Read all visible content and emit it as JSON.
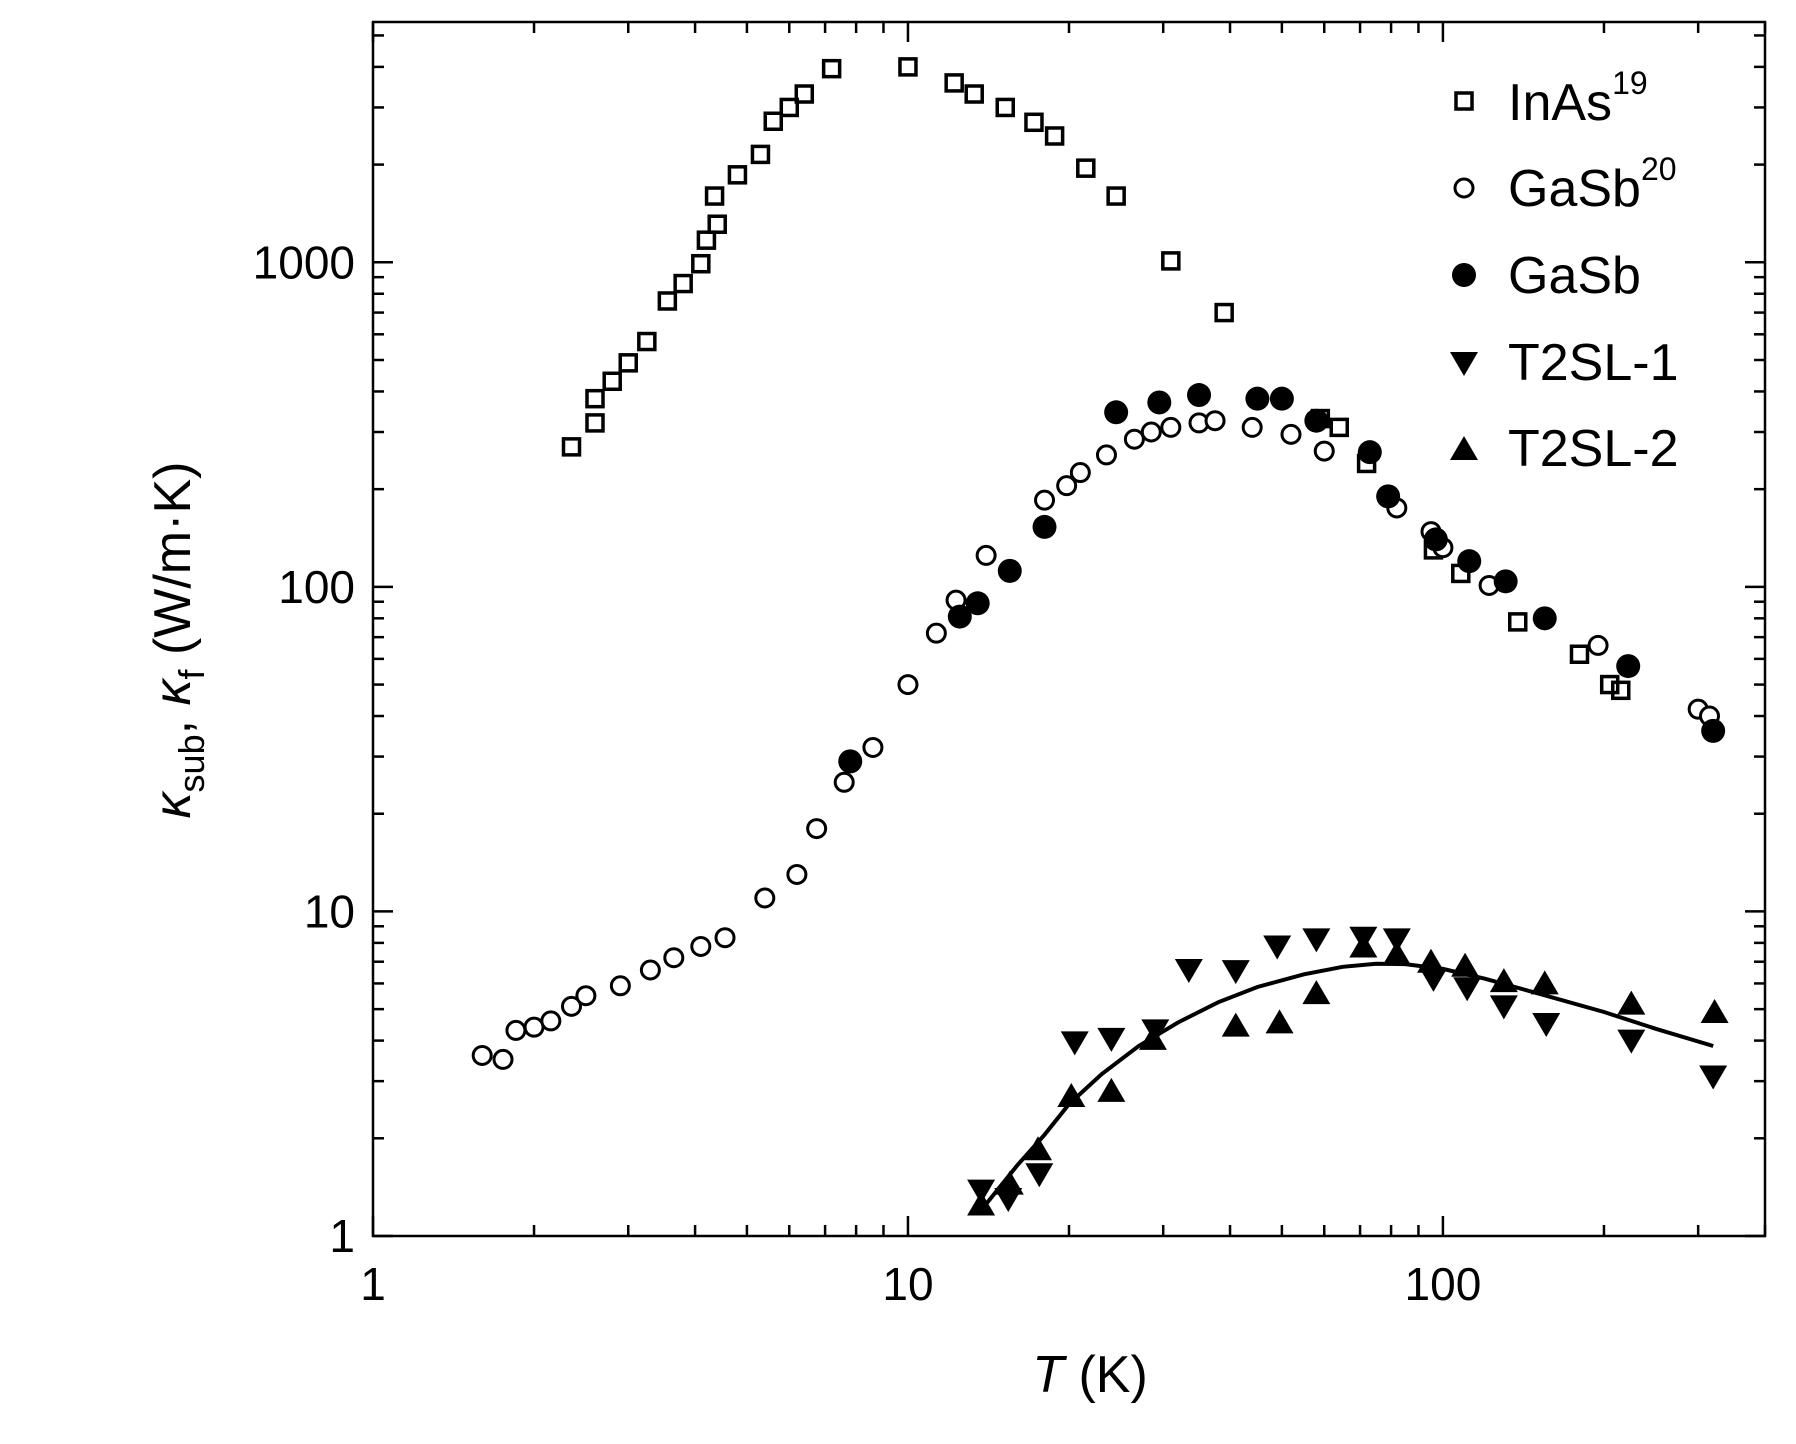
{
  "chart_data": {
    "type": "scatter",
    "xlabel": {
      "symbol": "T",
      "unit": " (K)"
    },
    "ylabel": {
      "kappa1": "κ",
      "sub1": "sub",
      "sep": ", ",
      "kappa2": "κ",
      "sub2": "f",
      "unit": " (W/m·K)"
    },
    "x_scale": "log",
    "y_scale": "log",
    "xlim": [
      1,
      400
    ],
    "ylim": [
      1,
      5500
    ],
    "x_ticks": [
      {
        "value": 1,
        "label": "1"
      },
      {
        "value": 10,
        "label": "10"
      },
      {
        "value": 100,
        "label": "100"
      }
    ],
    "y_ticks": [
      {
        "value": 1,
        "label": "1"
      },
      {
        "value": 10,
        "label": "10"
      },
      {
        "value": 100,
        "label": "100"
      },
      {
        "value": 1000,
        "label": "1000"
      }
    ],
    "legend_position": "top-right",
    "grid": false,
    "series": [
      {
        "name": "InAs",
        "name_sup": "19",
        "marker": "square-open",
        "points": [
          [
            2.35,
            270
          ],
          [
            2.6,
            320
          ],
          [
            2.6,
            380
          ],
          [
            2.8,
            430
          ],
          [
            3.0,
            490
          ],
          [
            3.25,
            570
          ],
          [
            3.55,
            760
          ],
          [
            3.8,
            860
          ],
          [
            4.1,
            990
          ],
          [
            4.2,
            1170
          ],
          [
            4.4,
            1310
          ],
          [
            4.35,
            1600
          ],
          [
            4.8,
            1860
          ],
          [
            5.3,
            2150
          ],
          [
            5.6,
            2720
          ],
          [
            6.0,
            3000
          ],
          [
            6.4,
            3300
          ],
          [
            7.2,
            3950
          ],
          [
            10.0,
            4000
          ],
          [
            12.2,
            3570
          ],
          [
            13.3,
            3300
          ],
          [
            15.2,
            3000
          ],
          [
            17.2,
            2700
          ],
          [
            18.8,
            2450
          ],
          [
            21.5,
            1950
          ],
          [
            24.5,
            1600
          ],
          [
            31.0,
            1010
          ],
          [
            39.0,
            700
          ],
          [
            59.0,
            330
          ],
          [
            64.0,
            310
          ],
          [
            72.0,
            240
          ],
          [
            96.0,
            130
          ],
          [
            108.0,
            110
          ],
          [
            138.0,
            78
          ],
          [
            180.0,
            62
          ],
          [
            205.0,
            50
          ],
          [
            215.0,
            48
          ]
        ]
      },
      {
        "name": "GaSb",
        "name_sup": "20",
        "marker": "circle-open",
        "points": [
          [
            1.6,
            3.6
          ],
          [
            1.75,
            3.5
          ],
          [
            1.85,
            4.3
          ],
          [
            2.0,
            4.4
          ],
          [
            2.15,
            4.6
          ],
          [
            2.35,
            5.1
          ],
          [
            2.5,
            5.5
          ],
          [
            2.9,
            5.9
          ],
          [
            3.3,
            6.6
          ],
          [
            3.65,
            7.2
          ],
          [
            4.1,
            7.8
          ],
          [
            4.55,
            8.3
          ],
          [
            5.4,
            11
          ],
          [
            6.2,
            13
          ],
          [
            6.75,
            18
          ],
          [
            7.6,
            25
          ],
          [
            8.6,
            32
          ],
          [
            10.0,
            50
          ],
          [
            11.3,
            72
          ],
          [
            12.3,
            91
          ],
          [
            14.0,
            125
          ],
          [
            18.0,
            185
          ],
          [
            19.8,
            205
          ],
          [
            21.0,
            225
          ],
          [
            23.5,
            255
          ],
          [
            26.5,
            285
          ],
          [
            28.5,
            300
          ],
          [
            31.0,
            310
          ],
          [
            35.0,
            320
          ],
          [
            37.5,
            325
          ],
          [
            44.0,
            310
          ],
          [
            52.0,
            295
          ],
          [
            60.0,
            262
          ],
          [
            82.0,
            175
          ],
          [
            95.0,
            148
          ],
          [
            100.0,
            132
          ],
          [
            122.0,
            101
          ],
          [
            195.0,
            66
          ],
          [
            300.0,
            42
          ],
          [
            315.0,
            40
          ]
        ]
      },
      {
        "name": "GaSb",
        "name_sup": "",
        "marker": "circle-filled",
        "points": [
          [
            7.8,
            29
          ],
          [
            12.5,
            81
          ],
          [
            13.5,
            89
          ],
          [
            15.5,
            112
          ],
          [
            18.0,
            153
          ],
          [
            24.5,
            345
          ],
          [
            29.5,
            370
          ],
          [
            35.0,
            390
          ],
          [
            45.0,
            380
          ],
          [
            50.0,
            380
          ],
          [
            58.0,
            325
          ],
          [
            73.0,
            260
          ],
          [
            79.0,
            190
          ],
          [
            97.0,
            140
          ],
          [
            112.0,
            120
          ],
          [
            131.0,
            104
          ],
          [
            155.0,
            80
          ],
          [
            222.0,
            57
          ],
          [
            320.0,
            36
          ]
        ]
      },
      {
        "name": "T2SL-1",
        "name_sup": "",
        "marker": "triangle-down-filled",
        "points": [
          [
            13.7,
            1.38
          ],
          [
            15.4,
            1.3
          ],
          [
            17.6,
            1.55
          ],
          [
            20.5,
            3.95
          ],
          [
            24.0,
            4.05
          ],
          [
            29.0,
            4.3
          ],
          [
            33.5,
            6.6
          ],
          [
            41.0,
            6.55
          ],
          [
            49.0,
            7.8
          ],
          [
            58.0,
            8.2
          ],
          [
            71.0,
            8.3
          ],
          [
            82.0,
            8.2
          ],
          [
            96.0,
            6.2
          ],
          [
            111.0,
            5.8
          ],
          [
            130.0,
            5.1
          ],
          [
            156.0,
            4.5
          ],
          [
            225.0,
            4.0
          ],
          [
            320.0,
            3.1
          ]
        ]
      },
      {
        "name": "T2SL-2",
        "name_sup": "",
        "marker": "triangle-up-filled",
        "points": [
          [
            13.7,
            1.25
          ],
          [
            15.5,
            1.45
          ],
          [
            17.5,
            1.85
          ],
          [
            20.2,
            2.7
          ],
          [
            24.0,
            2.8
          ],
          [
            28.7,
            4.05
          ],
          [
            41.0,
            4.45
          ],
          [
            49.5,
            4.55
          ],
          [
            58.0,
            5.6
          ],
          [
            71.0,
            7.8
          ],
          [
            82.0,
            7.4
          ],
          [
            95.0,
            7.0
          ],
          [
            110.0,
            6.8
          ],
          [
            130.0,
            6.1
          ],
          [
            155.0,
            6.0
          ],
          [
            225.0,
            5.2
          ],
          [
            322.0,
            4.9
          ]
        ]
      },
      {
        "name": "",
        "name_sup": "",
        "marker": "line",
        "points": [
          [
            13.7,
            1.2
          ],
          [
            16.0,
            1.65
          ],
          [
            18.0,
            2.05
          ],
          [
            20.0,
            2.55
          ],
          [
            23.0,
            3.15
          ],
          [
            27.0,
            3.85
          ],
          [
            32.0,
            4.55
          ],
          [
            38.0,
            5.25
          ],
          [
            45.0,
            5.85
          ],
          [
            55.0,
            6.4
          ],
          [
            65.0,
            6.75
          ],
          [
            75.0,
            6.9
          ],
          [
            85.0,
            6.88
          ],
          [
            100.0,
            6.65
          ],
          [
            120.0,
            6.2
          ],
          [
            150.0,
            5.6
          ],
          [
            200.0,
            4.9
          ],
          [
            250.0,
            4.35
          ],
          [
            320.0,
            3.85
          ]
        ]
      }
    ]
  }
}
